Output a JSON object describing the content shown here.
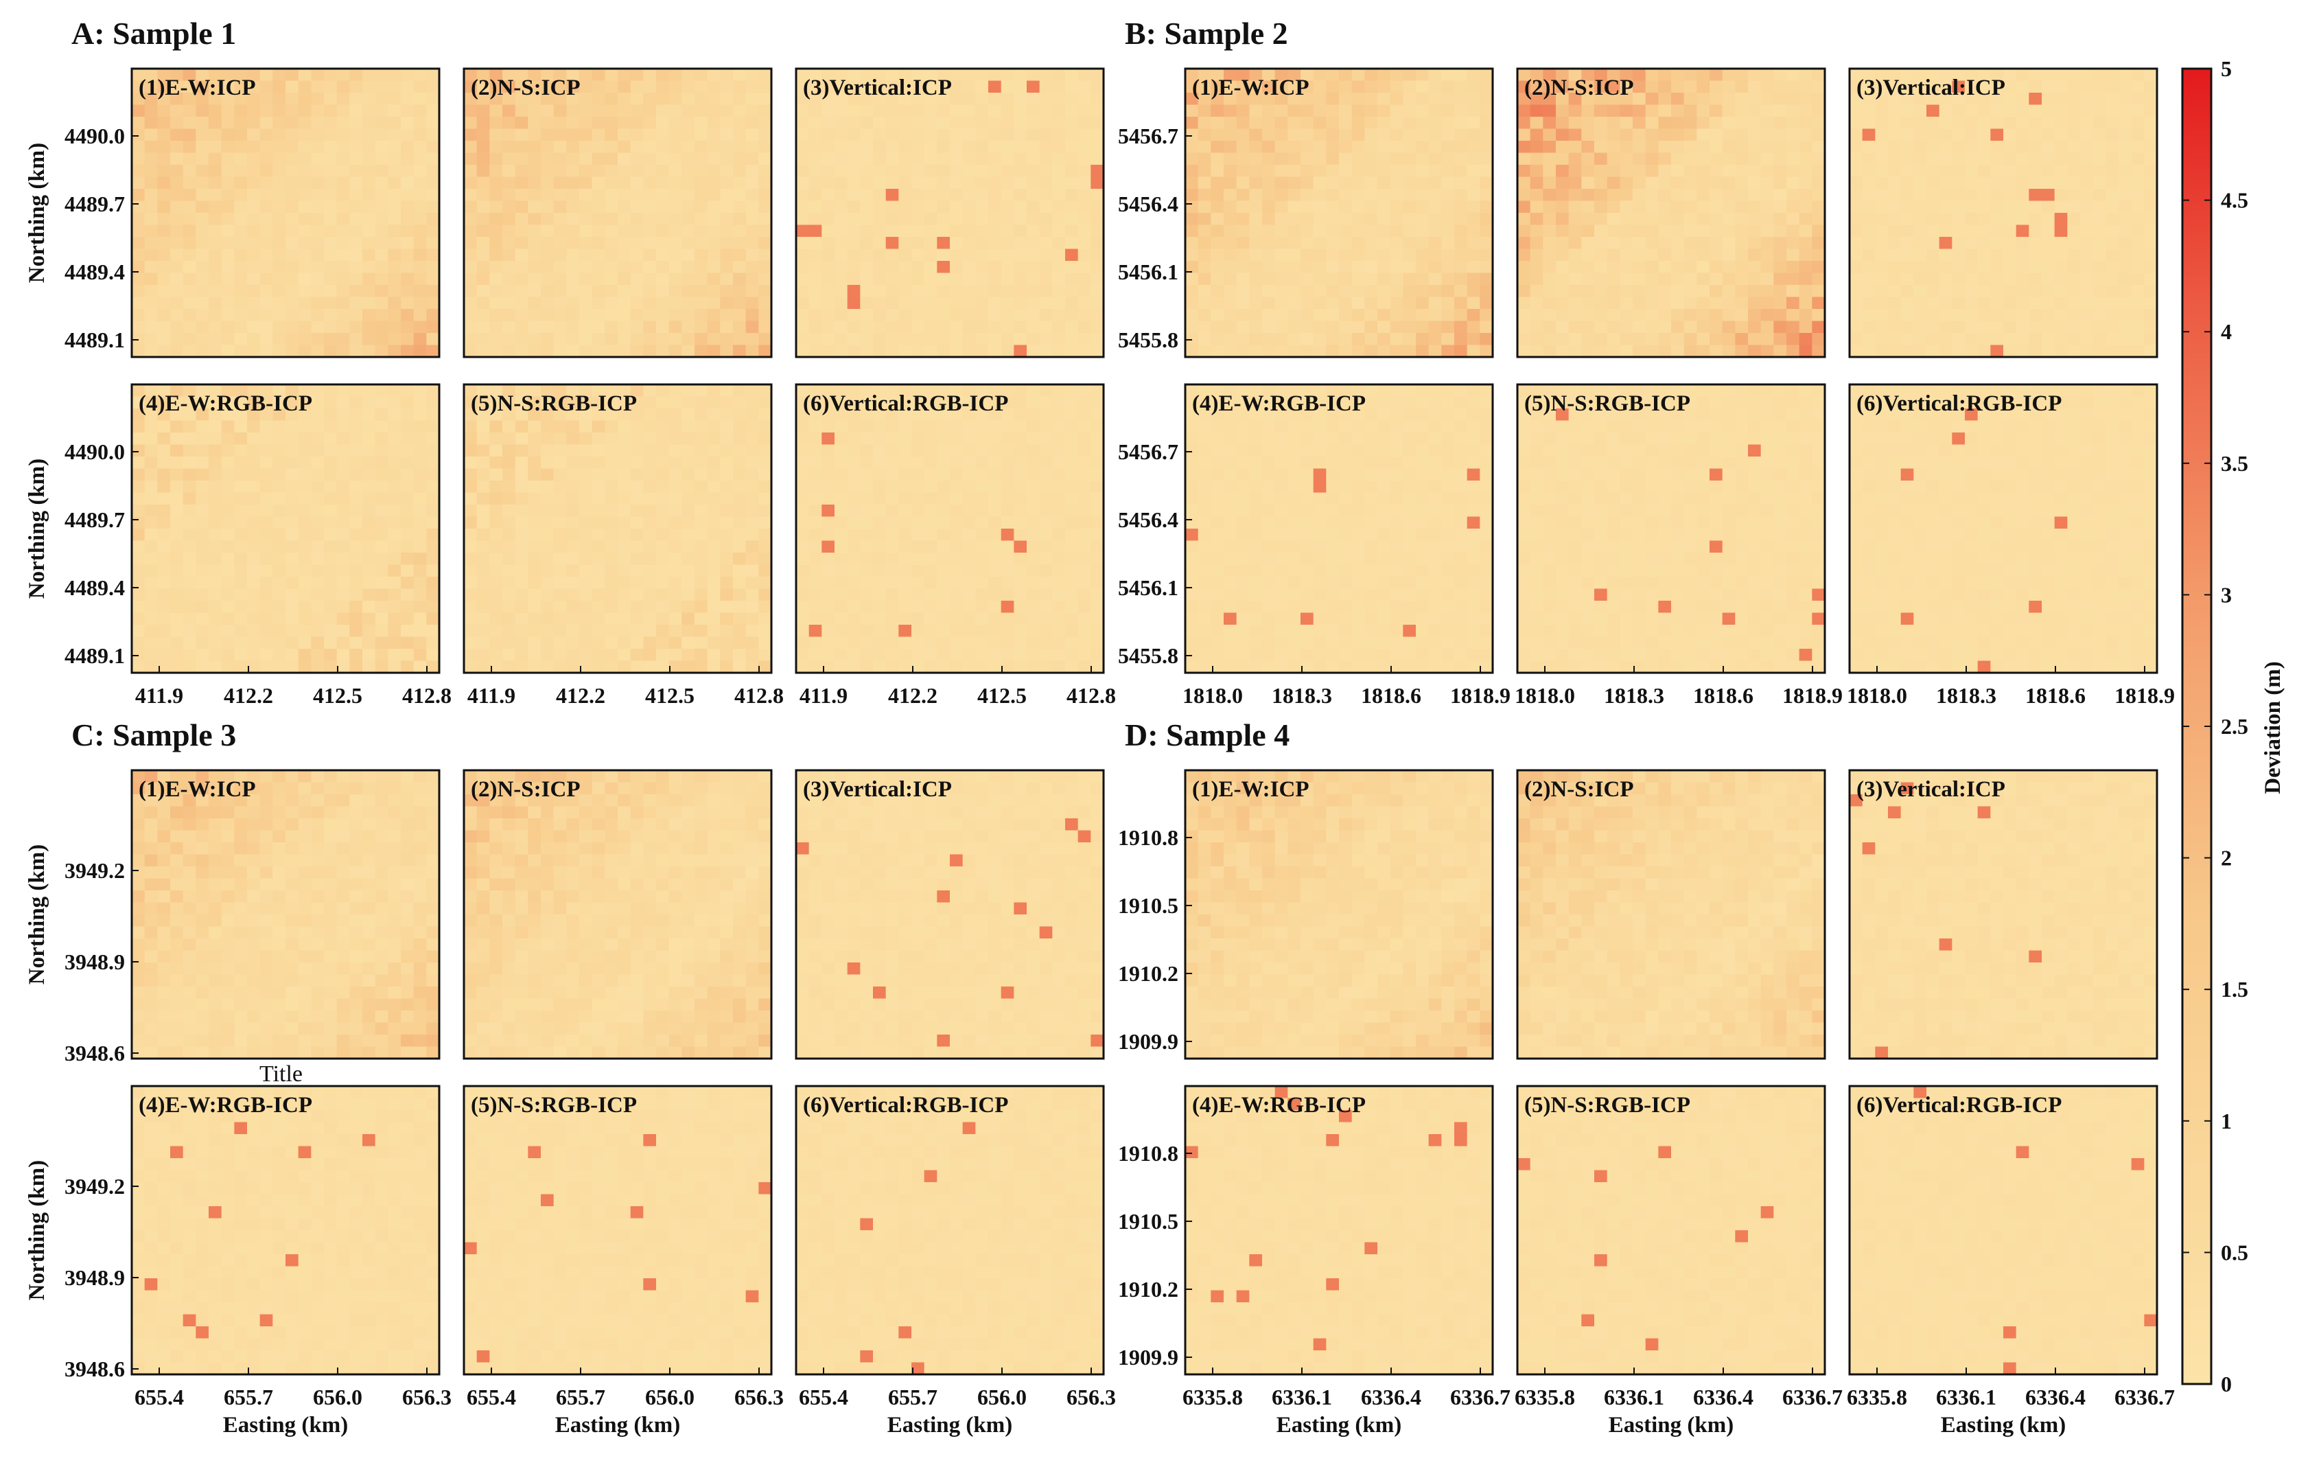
{
  "colors": {
    "low": "#FCE3A8",
    "mid": "#F39A69",
    "high": "#E31A1C"
  },
  "chart_data": {
    "type": "heatmap",
    "colorbar": {
      "label": "Deviation (m)",
      "min": 0,
      "max": 5,
      "ticks": [
        "0",
        "0.5",
        "1",
        "1.5",
        "2",
        "2.5",
        "3",
        "3.5",
        "4",
        "4.5",
        "5"
      ]
    },
    "stray_label": "Title",
    "xlabel": "Easting (km)",
    "ylabel": "Northing (km)",
    "samples": [
      {
        "id": "A",
        "title": "A: Sample 1",
        "xticks": [
          "411.9",
          "412.2",
          "412.5",
          "412.8"
        ],
        "yticks": [
          "4490.0",
          "4489.7",
          "4489.4",
          "4489.1"
        ],
        "panels": [
          {
            "title": "(1)E-W:ICP",
            "pattern": "split",
            "intensity": 2.8
          },
          {
            "title": "(2)N-S:ICP",
            "pattern": "split",
            "intensity": 2.8
          },
          {
            "title": "(3)Vertical:ICP",
            "pattern": "flat",
            "intensity": 0.6
          },
          {
            "title": "(4)E-W:RGB-ICP",
            "pattern": "corners",
            "intensity": 1.5
          },
          {
            "title": "(5)N-S:RGB-ICP",
            "pattern": "corners",
            "intensity": 1.4
          },
          {
            "title": "(6)Vertical:RGB-ICP",
            "pattern": "flat",
            "intensity": 0.4
          }
        ]
      },
      {
        "id": "B",
        "title": "B: Sample 2",
        "xticks": [
          "1818.0",
          "1818.3",
          "1818.6",
          "1818.9"
        ],
        "yticks": [
          "5456.7",
          "5456.4",
          "5456.1",
          "5455.8"
        ],
        "panels": [
          {
            "title": "(1)E-W:ICP",
            "pattern": "split",
            "intensity": 3.2
          },
          {
            "title": "(2)N-S:ICP",
            "pattern": "split",
            "intensity": 4.0
          },
          {
            "title": "(3)Vertical:ICP",
            "pattern": "flat",
            "intensity": 0.4
          },
          {
            "title": "(4)E-W:RGB-ICP",
            "pattern": "flat",
            "intensity": 0.3
          },
          {
            "title": "(5)N-S:RGB-ICP",
            "pattern": "flat",
            "intensity": 0.3
          },
          {
            "title": "(6)Vertical:RGB-ICP",
            "pattern": "flat",
            "intensity": 0.2
          }
        ]
      },
      {
        "id": "C",
        "title": "C: Sample 3",
        "xticks": [
          "655.4",
          "655.7",
          "656.0",
          "656.3"
        ],
        "yticks": [
          "3949.2",
          "3948.9",
          "3948.6"
        ],
        "panels": [
          {
            "title": "(1)E-W:ICP",
            "pattern": "split",
            "intensity": 2.6
          },
          {
            "title": "(2)N-S:ICP",
            "pattern": "split",
            "intensity": 2.4
          },
          {
            "title": "(3)Vertical:ICP",
            "pattern": "flat",
            "intensity": 0.4
          },
          {
            "title": "(4)E-W:RGB-ICP",
            "pattern": "flat",
            "intensity": 0.4
          },
          {
            "title": "(5)N-S:RGB-ICP",
            "pattern": "flat",
            "intensity": 0.3
          },
          {
            "title": "(6)Vertical:RGB-ICP",
            "pattern": "flat",
            "intensity": 0.3
          }
        ]
      },
      {
        "id": "D",
        "title": "D: Sample 4",
        "xticks": [
          "6335.8",
          "6336.1",
          "6336.4",
          "6336.7"
        ],
        "yticks": [
          "1910.8",
          "1910.5",
          "1910.2",
          "1909.9"
        ],
        "panels": [
          {
            "title": "(1)E-W:ICP",
            "pattern": "split",
            "intensity": 2.4
          },
          {
            "title": "(2)N-S:ICP",
            "pattern": "split",
            "intensity": 2.2
          },
          {
            "title": "(3)Vertical:ICP",
            "pattern": "flat",
            "intensity": 0.5
          },
          {
            "title": "(4)E-W:RGB-ICP",
            "pattern": "flat",
            "intensity": 0.3
          },
          {
            "title": "(5)N-S:RGB-ICP",
            "pattern": "flat",
            "intensity": 0.3
          },
          {
            "title": "(6)Vertical:RGB-ICP",
            "pattern": "flat",
            "intensity": 0.2
          }
        ]
      }
    ]
  }
}
